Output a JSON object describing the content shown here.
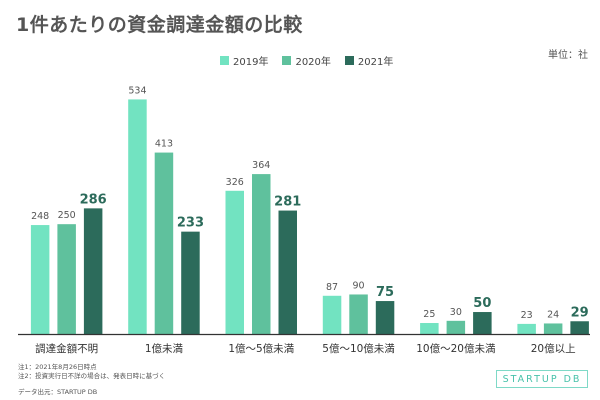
{
  "title": "1件あたりの資金調達金額の比較",
  "unit_label": "単位：社",
  "notes": [
    "注1：2021年8月26日時点",
    "注2：投資実行日不詳の場合は、発表日時に基づく"
  ],
  "source": "データ出元：STARTUP DB",
  "brand": "STARTUP DB",
  "colors": {
    "s2019": "#72e3c1",
    "s2020": "#5fc19d",
    "s2021": "#2c6b5b",
    "axis": "#333333"
  },
  "chart_data": {
    "type": "bar",
    "title": "1件あたりの資金調達金額の比較",
    "categories": [
      "調達金額不明",
      "1億未満",
      "1億〜5億未満",
      "5億〜10億未満",
      "10億〜20億未満",
      "20億以上"
    ],
    "series": [
      {
        "name": "2019年",
        "values": [
          248,
          534,
          326,
          87,
          25,
          23
        ]
      },
      {
        "name": "2020年",
        "values": [
          250,
          413,
          364,
          90,
          30,
          24
        ]
      },
      {
        "name": "2021年",
        "values": [
          286,
          233,
          281,
          75,
          50,
          29
        ]
      }
    ],
    "ylim": [
      0,
      560
    ],
    "grid": false,
    "legend": "top-center"
  }
}
